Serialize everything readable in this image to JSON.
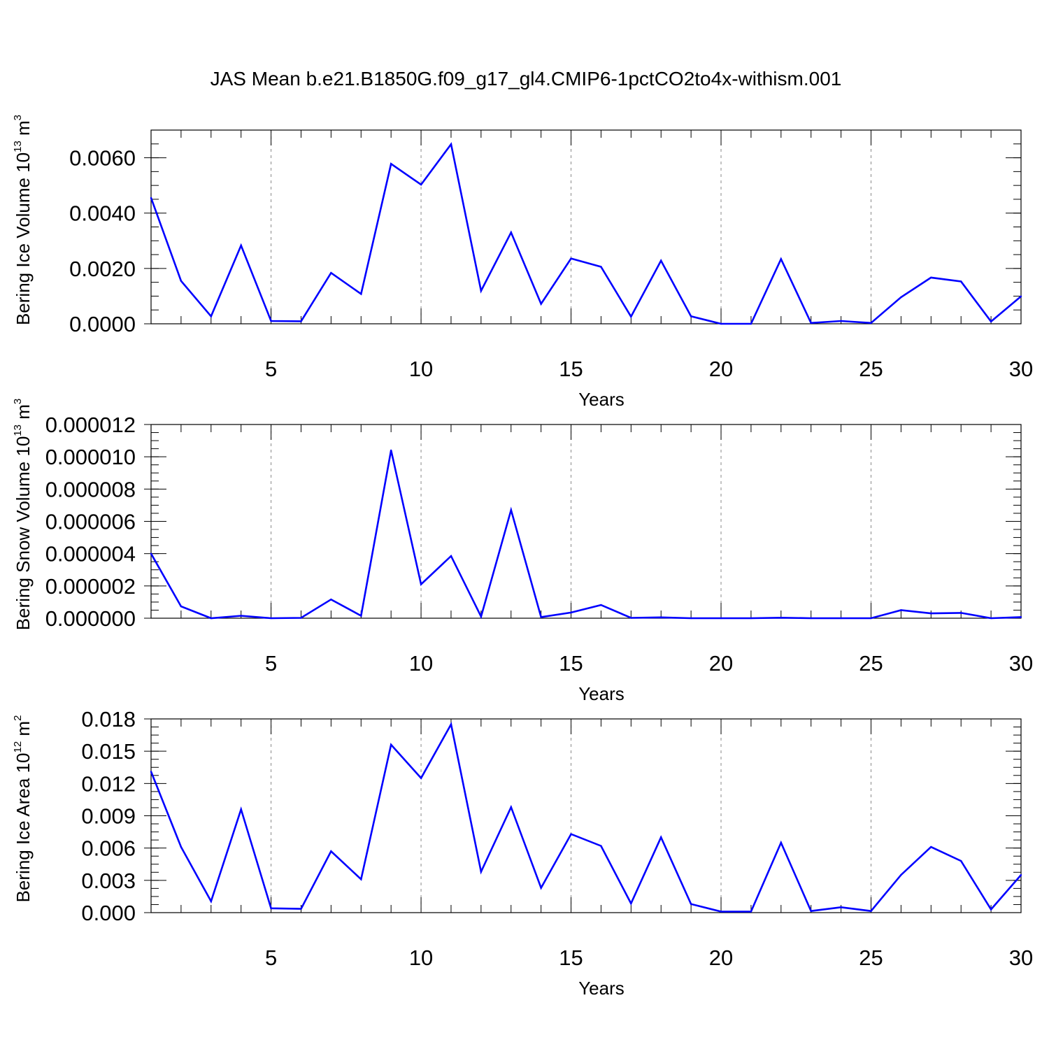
{
  "title": "JAS Mean b.e21.B1850G.f09_g17_gl4.CMIP6-1pctCO2to4x-withism.001",
  "colors": {
    "line": "#0000ff",
    "axis": "#000000",
    "grid": "#888888"
  },
  "chart_data": [
    {
      "type": "line",
      "title": "",
      "xlabel": "Years",
      "ylabel_base": "Bering Ice Volume 10",
      "ylabel_sup": "13",
      "ylabel_unit": "m",
      "ylabel_unit_sup": "3",
      "xlim": [
        1,
        30
      ],
      "ylim": [
        0,
        0.007
      ],
      "yticks": [
        0,
        0.002,
        0.004,
        0.006
      ],
      "ytick_labels": [
        "0.0000",
        "0.0020",
        "0.0040",
        "0.0060"
      ],
      "xticks": [
        5,
        10,
        15,
        20,
        25,
        30
      ],
      "xtick_labels": [
        "5",
        "10",
        "15",
        "20",
        "25",
        "30"
      ],
      "grid_x": [
        5,
        10,
        15,
        20,
        25
      ],
      "x": [
        1,
        2,
        3,
        4,
        5,
        6,
        7,
        8,
        9,
        10,
        11,
        12,
        13,
        14,
        15,
        16,
        17,
        18,
        19,
        20,
        21,
        22,
        23,
        24,
        25,
        26,
        27,
        28,
        29,
        30
      ],
      "values": [
        0.00455,
        0.00155,
        0.00027,
        0.00283,
        0.0001,
        9e-05,
        0.00184,
        0.00108,
        0.00578,
        0.00503,
        0.00649,
        0.00119,
        0.0033,
        0.00072,
        0.00236,
        0.00206,
        0.00026,
        0.00228,
        0.00027,
        0.0,
        0.0,
        0.00234,
        3e-05,
        0.0001,
        3e-05,
        0.00096,
        0.00167,
        0.00153,
        8e-05,
        0.00099
      ]
    },
    {
      "type": "line",
      "title": "",
      "xlabel": "Years",
      "ylabel_base": "Bering Snow Volume 10",
      "ylabel_sup": "13",
      "ylabel_unit": "m",
      "ylabel_unit_sup": "3",
      "xlim": [
        1,
        30
      ],
      "ylim": [
        0,
        1.2e-05
      ],
      "yticks": [
        0,
        2e-06,
        4e-06,
        6e-06,
        8e-06,
        1e-05,
        1.2e-05
      ],
      "ytick_labels": [
        "0.000000",
        "0.000002",
        "0.000004",
        "0.000006",
        "0.000008",
        "0.000010",
        "0.000012"
      ],
      "xticks": [
        5,
        10,
        15,
        20,
        25,
        30
      ],
      "xtick_labels": [
        "5",
        "10",
        "15",
        "20",
        "25",
        "30"
      ],
      "grid_x": [
        5,
        10,
        15,
        20,
        25
      ],
      "x": [
        1,
        2,
        3,
        4,
        5,
        6,
        7,
        8,
        9,
        10,
        11,
        12,
        13,
        14,
        15,
        16,
        17,
        18,
        19,
        20,
        21,
        22,
        23,
        24,
        25,
        26,
        27,
        28,
        29,
        30
      ],
      "values": [
        4e-06,
        7.3e-07,
        0.0,
        1.5e-07,
        0.0,
        2e-08,
        1.16e-06,
        1.5e-07,
        1.04e-05,
        2.1e-06,
        3.85e-06,
        1e-07,
        6.7e-06,
        7e-08,
        3.5e-07,
        8.2e-07,
        2e-08,
        5e-08,
        0.0,
        0.0,
        0.0,
        3e-08,
        0.0,
        0.0,
        0.0,
        5e-07,
        3e-07,
        3.3e-07,
        0.0,
        7e-08
      ]
    },
    {
      "type": "line",
      "title": "",
      "xlabel": "Years",
      "ylabel_base": "Bering Ice Area 10",
      "ylabel_sup": "12",
      "ylabel_unit": "m",
      "ylabel_unit_sup": "2",
      "xlim": [
        1,
        30
      ],
      "ylim": [
        0,
        0.018
      ],
      "yticks": [
        0,
        0.003,
        0.006,
        0.009,
        0.012,
        0.015,
        0.018
      ],
      "ytick_labels": [
        "0.000",
        "0.003",
        "0.006",
        "0.009",
        "0.012",
        "0.015",
        "0.018"
      ],
      "xticks": [
        5,
        10,
        15,
        20,
        25,
        30
      ],
      "xtick_labels": [
        "5",
        "10",
        "15",
        "20",
        "25",
        "30"
      ],
      "grid_x": [
        5,
        10,
        15,
        20,
        25
      ],
      "x": [
        1,
        2,
        3,
        4,
        5,
        6,
        7,
        8,
        9,
        10,
        11,
        12,
        13,
        14,
        15,
        16,
        17,
        18,
        19,
        20,
        21,
        22,
        23,
        24,
        25,
        26,
        27,
        28,
        29,
        30
      ],
      "values": [
        0.0131,
        0.0061,
        0.00105,
        0.0096,
        0.0004,
        0.00035,
        0.0057,
        0.0031,
        0.0156,
        0.0125,
        0.0175,
        0.0038,
        0.0098,
        0.0023,
        0.0073,
        0.0062,
        0.00085,
        0.007,
        0.0008,
        0.0001,
        0.0001,
        0.0065,
        0.00015,
        0.0005,
        0.00015,
        0.0035,
        0.0061,
        0.0048,
        0.0003,
        0.0035
      ]
    }
  ]
}
